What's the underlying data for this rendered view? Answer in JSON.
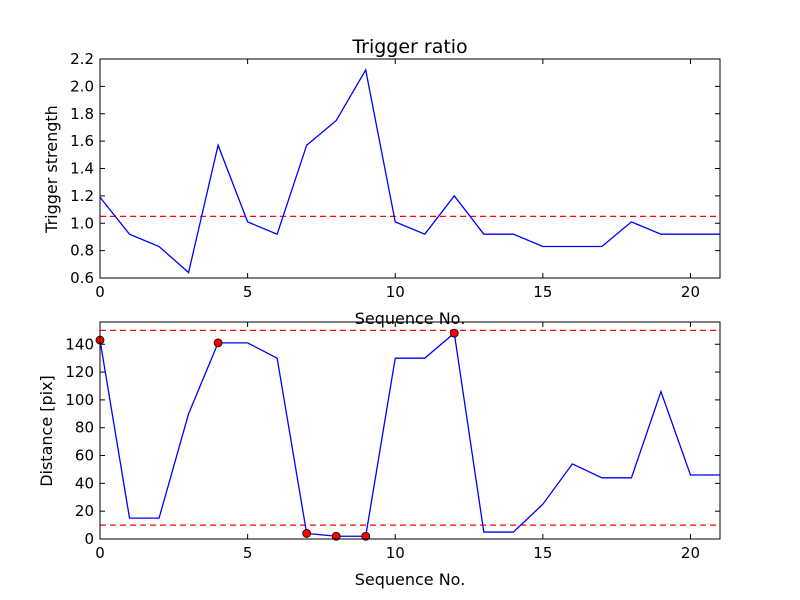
{
  "chart_data": [
    {
      "type": "line",
      "title": "Trigger ratio",
      "xlabel": "Sequence No.",
      "ylabel": "Trigger strength",
      "xlim": [
        0,
        21
      ],
      "ylim": [
        0.6,
        2.2
      ],
      "xticks": [
        0,
        5,
        10,
        15,
        20
      ],
      "yticks": [
        0.6,
        0.8,
        1.0,
        1.2,
        1.4,
        1.6,
        1.8,
        2.0,
        2.2
      ],
      "ytick_decimals": 1,
      "grid": false,
      "series": [
        {
          "x": [
            0,
            1,
            2,
            3,
            4,
            5,
            6,
            7,
            8,
            9,
            10,
            11,
            12,
            13,
            14,
            15,
            16,
            17,
            18,
            19,
            20,
            21
          ],
          "values": [
            1.19,
            0.92,
            0.83,
            0.64,
            1.57,
            1.01,
            0.92,
            1.57,
            1.75,
            2.12,
            1.01,
            0.92,
            1.2,
            0.92,
            0.92,
            0.83,
            0.83,
            0.83,
            1.01,
            0.92,
            0.92,
            0.92
          ],
          "color": "#0000ff"
        }
      ],
      "hlines": [
        {
          "y": 1.05,
          "color": "#ff0000",
          "style": "dashed"
        }
      ],
      "markers": []
    },
    {
      "type": "line",
      "title": "",
      "xlabel": "Sequence No.",
      "ylabel": "Distance [pix]",
      "xlim": [
        0,
        21
      ],
      "ylim": [
        0,
        156
      ],
      "xticks": [
        0,
        5,
        10,
        15,
        20
      ],
      "yticks": [
        0,
        20,
        40,
        60,
        80,
        100,
        120,
        140
      ],
      "ytick_decimals": 0,
      "grid": false,
      "series": [
        {
          "x": [
            0,
            1,
            2,
            3,
            4,
            5,
            6,
            7,
            8,
            9,
            10,
            11,
            12,
            13,
            14,
            15,
            16,
            17,
            18,
            19,
            20,
            21
          ],
          "values": [
            143,
            15,
            15,
            90,
            141,
            141,
            130,
            4,
            2,
            2,
            130,
            130,
            148,
            5,
            5,
            25,
            54,
            44,
            44,
            106,
            46,
            46
          ],
          "color": "#0000ff"
        }
      ],
      "hlines": [
        {
          "y": 150,
          "color": "#ff0000",
          "style": "dashed"
        },
        {
          "y": 10,
          "color": "#ff0000",
          "style": "dashed"
        }
      ],
      "markers": [
        {
          "x": 0,
          "y": 143
        },
        {
          "x": 4,
          "y": 141
        },
        {
          "x": 7,
          "y": 4
        },
        {
          "x": 8,
          "y": 2
        },
        {
          "x": 9,
          "y": 2
        },
        {
          "x": 12,
          "y": 148
        }
      ],
      "marker_color": "#ff0000"
    }
  ]
}
